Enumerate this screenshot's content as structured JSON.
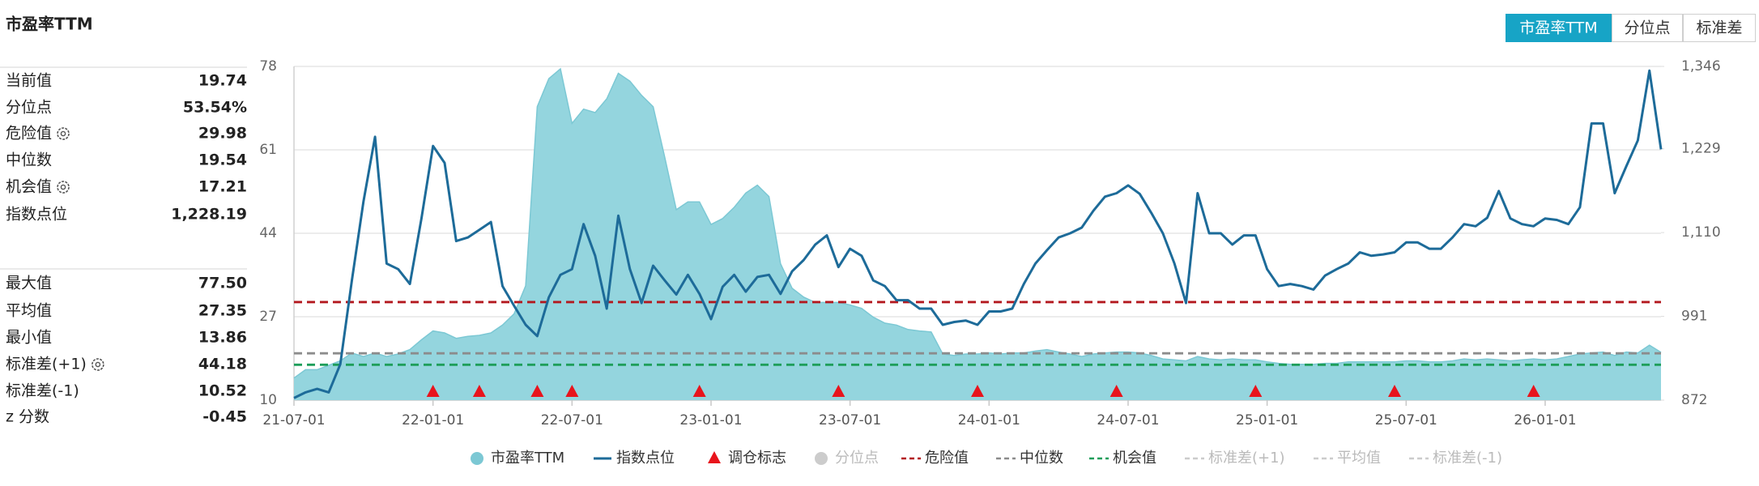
{
  "title": "市盈率TTM",
  "tabs": [
    "市盈率TTM",
    "分位点",
    "标准差"
  ],
  "active_tab": 0,
  "stats": [
    [
      {
        "label": "当前值",
        "value": "19.74"
      },
      {
        "label": "分位点",
        "value": "53.54%"
      },
      {
        "label": "危险值",
        "value": "29.98",
        "gear": true
      },
      {
        "label": "中位数",
        "value": "19.54"
      },
      {
        "label": "机会值",
        "value": "17.21",
        "gear": true
      },
      {
        "label": "指数点位",
        "value": "1,228.19"
      }
    ],
    [
      {
        "label": "最大值",
        "value": "77.50"
      },
      {
        "label": "平均值",
        "value": "27.35"
      },
      {
        "label": "最小值",
        "value": "13.86"
      },
      {
        "label": "标准差(+1)",
        "value": "44.18",
        "gear": true
      },
      {
        "label": "标准差(-1)",
        "value": "10.52"
      },
      {
        "label": "z 分数",
        "value": "-0.45"
      }
    ]
  ],
  "chart_data": {
    "type": "combo",
    "categories": [
      "21-07-01",
      null,
      null,
      null,
      null,
      null,
      null,
      null,
      null,
      null,
      null,
      null,
      "22-01-01",
      null,
      null,
      null,
      null,
      null,
      null,
      null,
      null,
      null,
      null,
      null,
      "22-07-01",
      null,
      null,
      null,
      null,
      null,
      null,
      null,
      null,
      null,
      null,
      null,
      "23-01-01",
      null,
      null,
      null,
      null,
      null,
      null,
      null,
      null,
      null,
      null,
      null,
      "23-07-01",
      null,
      null,
      null,
      null,
      null,
      null,
      null,
      null,
      null,
      null,
      null,
      "24-01-01",
      null,
      null,
      null,
      null,
      null,
      null,
      null,
      null,
      null,
      null,
      null,
      "24-07-01",
      null,
      null,
      null,
      null,
      null,
      null,
      null,
      null,
      null,
      null,
      null,
      "25-01-01",
      null,
      null,
      null,
      null,
      null,
      null,
      null,
      null,
      null,
      null,
      null,
      "25-07-01",
      null,
      null,
      null,
      null,
      null,
      null,
      null,
      null,
      null,
      null,
      null,
      "26-01-01",
      null,
      null,
      null,
      null,
      null,
      null,
      null,
      null,
      null,
      null
    ],
    "series": [
      {
        "name": "市盈率TTM",
        "type": "area",
        "color": "#94d5de",
        "stroke": "#7cc8d4",
        "values": [
          14.5,
          16.2,
          16.2,
          17.1,
          18.0,
          19.6,
          18.9,
          19.6,
          18.9,
          19.4,
          20.3,
          22.3,
          24.1,
          23.7,
          22.6,
          23.0,
          23.2,
          23.7,
          25.3,
          27.6,
          33.3,
          69.8,
          75.5,
          77.5,
          66.4,
          69.3,
          68.6,
          71.4,
          76.6,
          75.0,
          72.1,
          69.8,
          59.5,
          48.8,
          50.4,
          50.4,
          45.8,
          47.0,
          49.3,
          52.2,
          53.8,
          51.5,
          37.8,
          32.8,
          31.0,
          29.9,
          29.9,
          29.9,
          29.4,
          28.7,
          26.9,
          25.7,
          25.3,
          24.4,
          24.1,
          23.9,
          19.4,
          19.1,
          19.4,
          19.4,
          19.6,
          19.4,
          19.6,
          19.6,
          20.0,
          20.3,
          19.8,
          19.4,
          18.9,
          19.4,
          19.6,
          19.8,
          19.8,
          19.6,
          19.1,
          18.4,
          18.2,
          18.0,
          18.9,
          18.4,
          18.2,
          18.4,
          18.2,
          18.2,
          17.8,
          17.5,
          17.3,
          17.3,
          17.3,
          17.5,
          17.5,
          17.8,
          17.8,
          17.8,
          17.8,
          17.8,
          18.0,
          18.0,
          17.8,
          17.8,
          18.0,
          18.4,
          18.2,
          18.4,
          18.2,
          18.0,
          18.2,
          18.4,
          18.2,
          18.4,
          18.9,
          19.4,
          19.6,
          19.8,
          19.1,
          19.8,
          19.6,
          21.2,
          19.74
        ]
      },
      {
        "name": "指数点位",
        "type": "line",
        "axis": "y2",
        "color": "#1d6b99",
        "values": [
          875,
          883,
          888,
          883,
          923,
          1042,
          1154,
          1246,
          1066,
          1058,
          1037,
          1130,
          1233,
          1209,
          1098,
          1103,
          1114,
          1125,
          1034,
          1006,
          979,
          963,
          1018,
          1050,
          1058,
          1122,
          1077,
          1002,
          1134,
          1058,
          1010,
          1063,
          1042,
          1022,
          1050,
          1023,
          987,
          1033,
          1050,
          1026,
          1047,
          1050,
          1023,
          1055,
          1071,
          1093,
          1106,
          1061,
          1087,
          1077,
          1042,
          1034,
          1014,
          1014,
          1002,
          1002,
          979,
          983,
          985,
          979,
          998,
          998,
          1002,
          1037,
          1066,
          1085,
          1103,
          1109,
          1117,
          1141,
          1161,
          1166,
          1177,
          1165,
          1138,
          1109,
          1066,
          1010,
          1166,
          1109,
          1109,
          1093,
          1106,
          1106,
          1058,
          1034,
          1037,
          1034,
          1029,
          1049,
          1058,
          1066,
          1082,
          1077,
          1079,
          1082,
          1096,
          1096,
          1087,
          1087,
          1103,
          1122,
          1119,
          1131,
          1169,
          1130,
          1122,
          1119,
          1130,
          1128,
          1122,
          1146,
          1265,
          1265,
          1166,
          1204,
          1241,
          1340,
          1228.19
        ]
      }
    ],
    "markers": {
      "name": "调仓标志",
      "color": "#e8141c",
      "indices": [
        12,
        16,
        21,
        24,
        35,
        47,
        59,
        71,
        83,
        95,
        107
      ]
    },
    "reference_lines": [
      {
        "name": "危险值",
        "value": 29.98,
        "color": "#b3181e"
      },
      {
        "name": "中位数",
        "value": 19.54,
        "color": "#8c8c8c"
      },
      {
        "name": "机会值",
        "value": 17.21,
        "color": "#1e9e5a"
      }
    ],
    "inactive_series": [
      {
        "name": "分位点",
        "icon": "circle",
        "color": "#cccccc"
      },
      {
        "name": "标准差(+1)",
        "icon": "dash",
        "color": "#cccccc"
      },
      {
        "name": "平均值",
        "icon": "dash",
        "color": "#cccccc"
      },
      {
        "name": "标准差(-1)",
        "icon": "dash",
        "color": "#cccccc"
      }
    ],
    "ylim": [
      10,
      78
    ],
    "yticks": [
      10,
      27,
      44,
      61,
      78
    ],
    "y2lim": [
      872,
      1346
    ],
    "y2ticks": [
      872,
      991,
      {
        "value": 1110,
        "label": "1,110"
      },
      {
        "value": 1229,
        "label": "1,229"
      },
      {
        "value": 1346,
        "label": "1,346"
      }
    ],
    "grid": true
  }
}
